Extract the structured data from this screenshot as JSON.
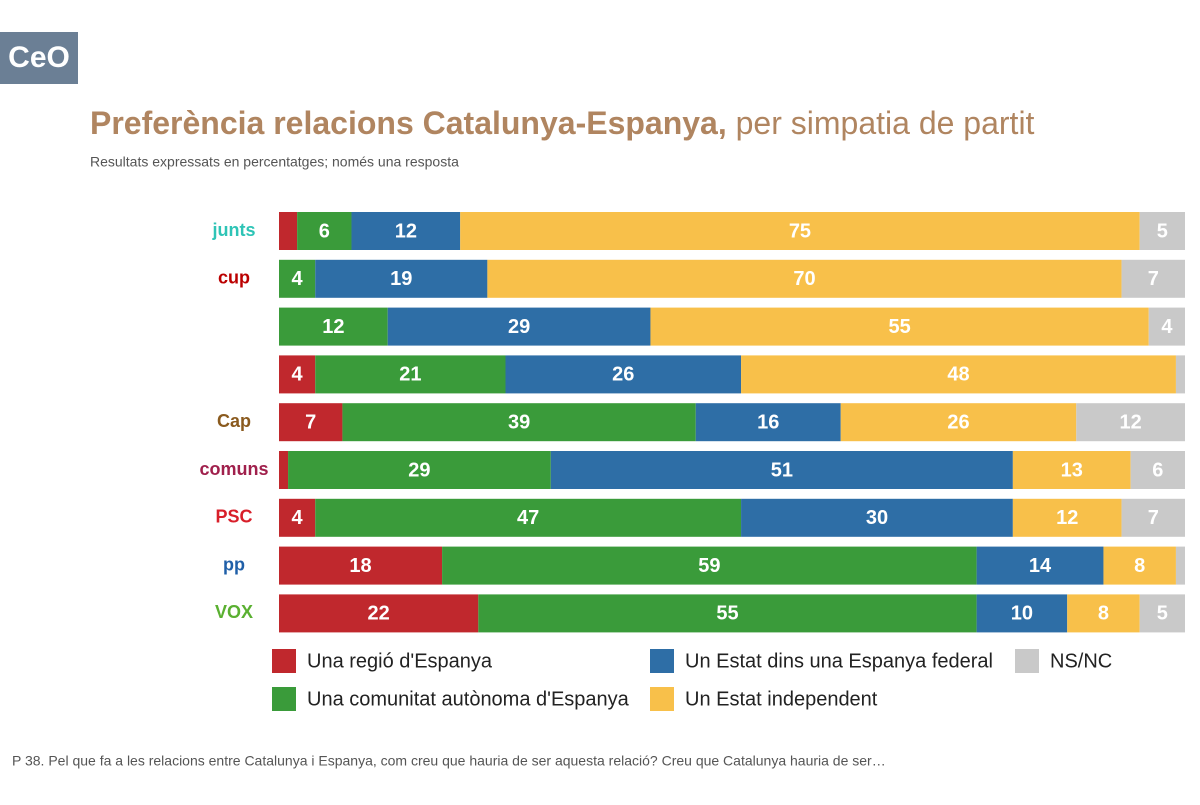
{
  "logo": "CeO",
  "chart_data": {
    "type": "stacked-barh",
    "title": "Preferència relacions Catalunya-Espanya,",
    "title_suffix": "per simpatia de partit",
    "subtitle": "Resultats expressats en percentatges; només una resposta",
    "note": "P 38. Pel que fa a les relacions entre Catalunya i Espanya, com creu que hauria de ser aquesta relació? Creu que Catalunya hauria de ser…",
    "categories": [
      "junts",
      "cup",
      null,
      null,
      "Cap",
      "comuns",
      "PSC",
      "pp",
      "VOX"
    ],
    "series": [
      {
        "name": "Una regió d'Espanya",
        "color": "#c0282d",
        "values": [
          2,
          0,
          0,
          4,
          7,
          1,
          4,
          18,
          22
        ]
      },
      {
        "name": "Una comunitat autònoma d'Espanya",
        "color": "#3a9b3a",
        "values": [
          6,
          4,
          12,
          21,
          39,
          29,
          47,
          59,
          55
        ]
      },
      {
        "name": "Un Estat dins una Espanya federal",
        "color": "#2e6ea6",
        "values": [
          12,
          19,
          29,
          26,
          16,
          51,
          30,
          14,
          10
        ]
      },
      {
        "name": "Un Estat independent",
        "color": "#f8c04a",
        "values": [
          75,
          70,
          55,
          48,
          26,
          13,
          12,
          8,
          8
        ]
      },
      {
        "name": "NS/NC",
        "color": "#c9c9c9",
        "values": [
          5,
          7,
          4,
          1,
          12,
          6,
          7,
          1,
          5
        ]
      }
    ]
  }
}
